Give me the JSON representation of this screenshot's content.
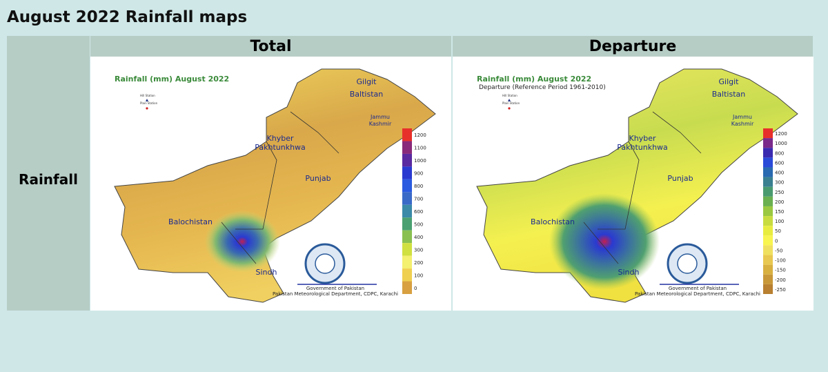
{
  "header": {
    "title": "August 2022 Rainfall maps"
  },
  "row_label": "Rainfall",
  "maps": [
    {
      "header": "Total",
      "caption": "Rainfall (mm) August 2022",
      "stations": [
        "Hill Station",
        "Plain Station"
      ],
      "regions": [
        "Gilgit",
        "Baltistan",
        "Jammu",
        "Kashmir",
        "Khyber",
        "Pakhtunkhwa",
        "Punjab",
        "Balochistan",
        "Sindh"
      ],
      "legend_ticks": [
        1200,
        1100,
        1000,
        900,
        800,
        700,
        600,
        500,
        400,
        300,
        200,
        100,
        0
      ],
      "legend_colors": [
        "#e8302a",
        "#8a2a7a",
        "#5a2aa0",
        "#2a3ad0",
        "#2a5ae0",
        "#3a6ac8",
        "#3a8aa8",
        "#4aa070",
        "#8ac050",
        "#d0e040",
        "#f4f070",
        "#f0d050",
        "#d8a040"
      ],
      "footer": [
        "Government of Pakistan",
        "Pakistan Meteorological Department, CDPC, Karachi"
      ]
    },
    {
      "header": "Departure",
      "caption": "Rainfall (mm) August 2022",
      "subcaption": "Departure (Reference Period 1961-2010)",
      "stations": [
        "Hill Station",
        "Plain Station"
      ],
      "regions": [
        "Gilgit",
        "Baltistan",
        "Jammu",
        "Kashmir",
        "Khyber",
        "Pakhtunkhwa",
        "Punjab",
        "Balochistan",
        "Sindh"
      ],
      "legend_ticks": [
        1200,
        1000,
        800,
        600,
        400,
        300,
        250,
        200,
        150,
        100,
        50,
        0,
        -50,
        -100,
        -150,
        -200,
        -250
      ],
      "legend_colors": [
        "#e8302a",
        "#7a2a8a",
        "#3a2ab0",
        "#2a4ad8",
        "#2a6ab0",
        "#3a8090",
        "#4a9a70",
        "#6ab050",
        "#9ac840",
        "#c8dc40",
        "#e8ec40",
        "#f8f450",
        "#f0e060",
        "#e8c850",
        "#d8b040",
        "#c89838",
        "#b88030"
      ],
      "footer": [
        "Government of Pakistan",
        "Pakistan Meteorological Department, CDPC, Karachi"
      ]
    }
  ]
}
